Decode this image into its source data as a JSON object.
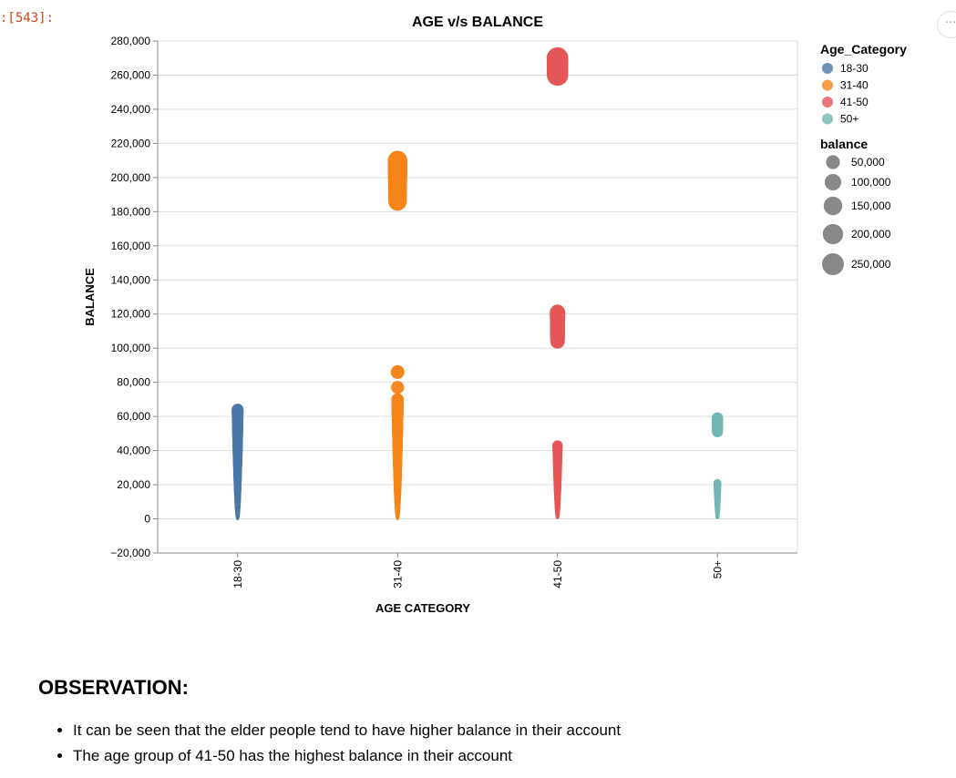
{
  "cell": {
    "prompt": ":[543]:",
    "more_icon": "ellipsis-icon",
    "more_label": "···"
  },
  "chart_data": {
    "type": "scatter",
    "title": "AGE v/s BALANCE",
    "xlabel": "AGE CATEGORY",
    "ylabel": "BALANCE",
    "categories": [
      "18-30",
      "31-40",
      "41-50",
      "50+"
    ],
    "ylim": [
      -20000,
      280000
    ],
    "yticks": [
      -20000,
      0,
      20000,
      40000,
      60000,
      80000,
      100000,
      120000,
      140000,
      160000,
      180000,
      200000,
      220000,
      240000,
      260000,
      280000
    ],
    "ytick_labels": [
      "−20,000",
      "0",
      "20,000",
      "40,000",
      "60,000",
      "80,000",
      "100,000",
      "120,000",
      "140,000",
      "160,000",
      "180,000",
      "200,000",
      "220,000",
      "240,000",
      "260,000",
      "280,000"
    ],
    "grid": true,
    "colors": {
      "18-30": "#4c78a8",
      "31-40": "#f58518",
      "41-50": "#e45756",
      "50+": "#72b7b2"
    },
    "series": [
      {
        "name": "18-30",
        "values": [
          [
            0,
            2000
          ],
          [
            1000,
            4000
          ],
          [
            3000,
            6000
          ],
          [
            5000,
            8000
          ],
          [
            7000,
            10000
          ],
          [
            9000,
            12000
          ],
          [
            11000,
            14000
          ],
          [
            13000,
            16000
          ],
          [
            15000,
            18000
          ],
          [
            17000,
            20000
          ],
          [
            19000,
            22000
          ],
          [
            21000,
            24000
          ],
          [
            23000,
            26000
          ],
          [
            25000,
            28000
          ],
          [
            27000,
            30000
          ],
          [
            29000,
            32000
          ],
          [
            31000,
            34000
          ],
          [
            33000,
            36000
          ],
          [
            35000,
            38000
          ],
          [
            37000,
            40000
          ],
          [
            39000,
            42000
          ],
          [
            41000,
            44000
          ],
          [
            43000,
            46000
          ],
          [
            45000,
            48000
          ],
          [
            47000,
            50000
          ],
          [
            49000,
            52000
          ],
          [
            51000,
            54000
          ],
          [
            53000,
            56000
          ],
          [
            55000,
            58000
          ],
          [
            57000,
            60000
          ],
          [
            59000,
            62000
          ],
          [
            61000,
            63000
          ],
          [
            62000,
            64000
          ]
        ]
      },
      {
        "name": "31-40",
        "values": [
          [
            0,
            2000
          ],
          [
            1000,
            4000
          ],
          [
            3000,
            6000
          ],
          [
            5000,
            8000
          ],
          [
            7000,
            10000
          ],
          [
            9000,
            12000
          ],
          [
            11000,
            14000
          ],
          [
            13000,
            16000
          ],
          [
            15000,
            18000
          ],
          [
            17000,
            20000
          ],
          [
            19000,
            22000
          ],
          [
            21000,
            24000
          ],
          [
            23000,
            26000
          ],
          [
            25000,
            28000
          ],
          [
            27000,
            30000
          ],
          [
            29000,
            32000
          ],
          [
            31000,
            34000
          ],
          [
            33000,
            36000
          ],
          [
            35000,
            38000
          ],
          [
            37000,
            40000
          ],
          [
            39000,
            42000
          ],
          [
            41000,
            44000
          ],
          [
            43000,
            46000
          ],
          [
            45000,
            48000
          ],
          [
            47000,
            50000
          ],
          [
            49000,
            52000
          ],
          [
            51000,
            54000
          ],
          [
            53000,
            56000
          ],
          [
            55000,
            58000
          ],
          [
            57000,
            60000
          ],
          [
            59000,
            62000
          ],
          [
            61000,
            64000
          ],
          [
            63000,
            66000
          ],
          [
            65000,
            68000
          ],
          [
            67000,
            70000
          ],
          [
            77000,
            77000
          ],
          [
            86000,
            86000
          ],
          [
            186000,
            190000
          ],
          [
            188000,
            192000
          ],
          [
            190000,
            194000
          ],
          [
            192000,
            196000
          ],
          [
            194000,
            198000
          ],
          [
            196000,
            200000
          ],
          [
            198000,
            202000
          ],
          [
            200000,
            204000
          ],
          [
            202000,
            206000
          ],
          [
            204000,
            208000
          ],
          [
            206000,
            210000
          ]
        ]
      },
      {
        "name": "41-50",
        "values": [
          [
            1000,
            3000
          ],
          [
            3000,
            6000
          ],
          [
            6000,
            9000
          ],
          [
            9000,
            12000
          ],
          [
            12000,
            15000
          ],
          [
            15000,
            18000
          ],
          [
            18000,
            21000
          ],
          [
            21000,
            24000
          ],
          [
            24000,
            27000
          ],
          [
            27000,
            30000
          ],
          [
            30000,
            33000
          ],
          [
            33000,
            36000
          ],
          [
            36000,
            39000
          ],
          [
            39000,
            42000
          ],
          [
            41000,
            43000
          ],
          [
            104000,
            108000
          ],
          [
            106000,
            110000
          ],
          [
            108000,
            112000
          ],
          [
            110000,
            114000
          ],
          [
            112000,
            116000
          ],
          [
            114000,
            118000
          ],
          [
            116000,
            120000
          ],
          [
            118000,
            121000
          ],
          [
            260000,
            262000
          ],
          [
            262000,
            264000
          ],
          [
            264000,
            266000
          ],
          [
            266000,
            268000
          ],
          [
            268000,
            270000
          ]
        ]
      },
      {
        "name": "50+",
        "values": [
          [
            1000,
            3000
          ],
          [
            4000,
            6000
          ],
          [
            7000,
            9000
          ],
          [
            10000,
            12000
          ],
          [
            13000,
            15000
          ],
          [
            16000,
            18000
          ],
          [
            19000,
            21000
          ],
          [
            51000,
            53000
          ],
          [
            53000,
            55000
          ],
          [
            55000,
            57000
          ],
          [
            57000,
            59000
          ]
        ]
      }
    ],
    "legend": {
      "placement": "right",
      "color_title": "Age_Category",
      "color_items": [
        "18-30",
        "31-40",
        "41-50",
        "50+"
      ],
      "size_title": "balance",
      "size_items": [
        "50,000",
        "100,000",
        "150,000",
        "200,000",
        "250,000"
      ],
      "size_values": [
        50000,
        100000,
        150000,
        200000,
        250000
      ]
    }
  },
  "observation": {
    "title": "OBSERVATION:",
    "bullets": [
      "It can be seen that the elder people tend to have higher balance in their account",
      "The age group of 41-50 has the highest balance in their account"
    ]
  }
}
